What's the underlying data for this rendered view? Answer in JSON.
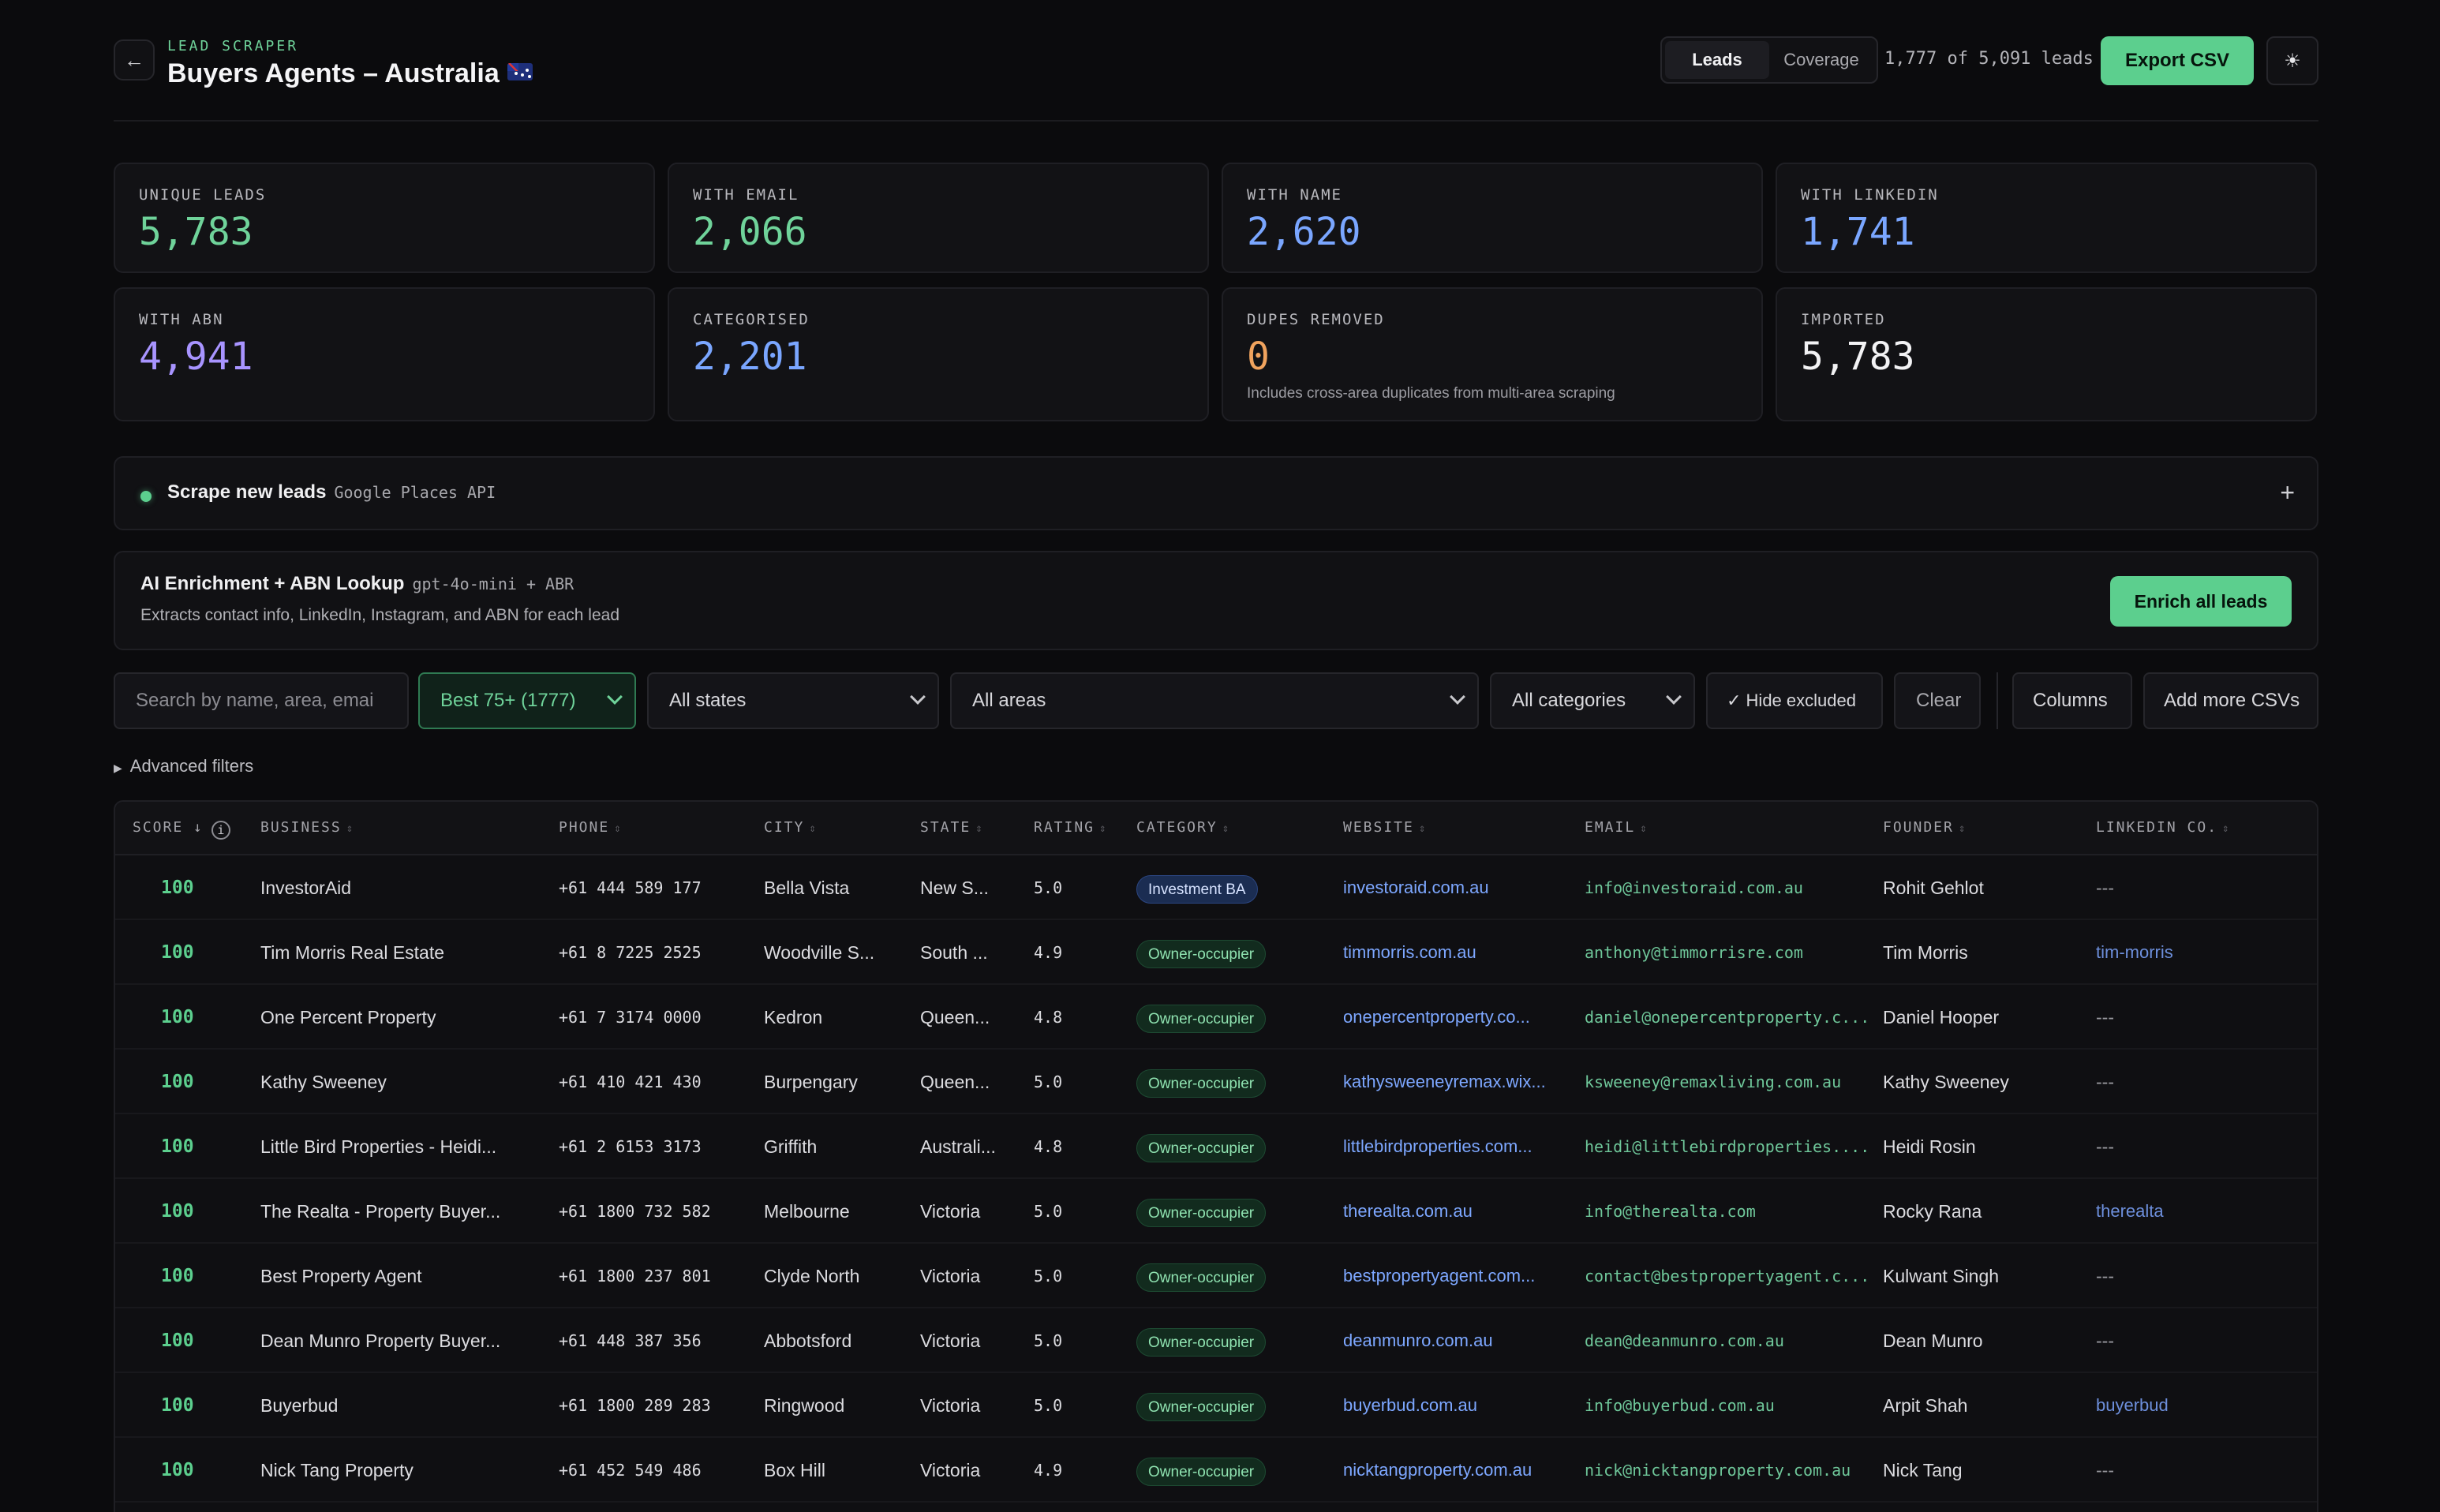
{
  "header": {
    "eyebrow": "LEAD SCRAPER",
    "title": "Buyers Agents – Australia",
    "tabs": [
      {
        "label": "Leads",
        "active": true
      },
      {
        "label": "Coverage",
        "active": false
      }
    ],
    "lead_count": "1,777 of 5,091 leads",
    "export_label": "Export CSV",
    "icons": {
      "back": "arrow-left-icon",
      "theme": "sun-icon",
      "flag": "australia-flag-icon"
    }
  },
  "stats": [
    {
      "label": "UNIQUE LEADS",
      "value": "5,783",
      "color": "#6fd39a"
    },
    {
      "label": "WITH EMAIL",
      "value": "2,066",
      "color": "#6fd39a"
    },
    {
      "label": "WITH NAME",
      "value": "2,620",
      "color": "#7aa6ff"
    },
    {
      "label": "WITH LINKEDIN",
      "value": "1,741",
      "color": "#7aa6ff"
    },
    {
      "label": "WITH ABN",
      "value": "4,941",
      "color": "#a894ff"
    },
    {
      "label": "CATEGORISED",
      "value": "2,201",
      "color": "#7aa6ff"
    },
    {
      "label": "DUPES REMOVED",
      "value": "0",
      "color": "#f0a35e",
      "note": "Includes cross-area duplicates from multi-area scraping"
    },
    {
      "label": "IMPORTED",
      "value": "5,783",
      "color": "#f2f2f4"
    }
  ],
  "scrape": {
    "title": "Scrape new leads",
    "subtitle": "Google Places API",
    "expand_icon": "plus-icon",
    "status_color": "#5ccf8e"
  },
  "enrich": {
    "title": "AI Enrichment + ABN Lookup",
    "model": "gpt-4o-mini + ABR",
    "description": "Extracts contact info, LinkedIn, Instagram, and ABN for each lead",
    "button": "Enrich all leads"
  },
  "filters": {
    "search_placeholder": "Search by name, area, emai",
    "score_filter": "Best 75+ (1777)",
    "state": "All states",
    "area": "All areas",
    "category": "All categories",
    "hide_excluded": "✓ Hide excluded",
    "clear": "Clear",
    "columns": "Columns",
    "add_csv": "Add more CSVs",
    "advanced": "Advanced filters"
  },
  "table": {
    "headers": {
      "score": "SCORE ↓",
      "business": "BUSINESS",
      "phone": "PHONE",
      "city": "CITY",
      "state": "STATE",
      "rating": "RATING",
      "category": "CATEGORY",
      "website": "WEBSITE",
      "email": "EMAIL",
      "founder": "FOUNDER",
      "linkedin": "LINKEDIN CO."
    },
    "rows": [
      {
        "score": "100",
        "business": "InvestorAid",
        "phone": "+61 444 589 177",
        "city": "Bella Vista",
        "state": "New S...",
        "rating": "5.0",
        "category": "Investment BA",
        "website": "investoraid.com.au",
        "email": "info@investoraid.com.au",
        "founder": "Rohit Gehlot",
        "linkedin": "---"
      },
      {
        "score": "100",
        "business": "Tim Morris Real Estate",
        "phone": "+61 8 7225 2525",
        "city": "Woodville S...",
        "state": "South ...",
        "rating": "4.9",
        "category": "Owner-occupier",
        "website": "timmorris.com.au",
        "email": "anthony@timmorrisre.com",
        "founder": "Tim Morris",
        "linkedin": "tim-morris"
      },
      {
        "score": "100",
        "business": "One Percent Property",
        "phone": "+61 7 3174 0000",
        "city": "Kedron",
        "state": "Queen...",
        "rating": "4.8",
        "category": "Owner-occupier",
        "website": "onepercentproperty.co...",
        "email": "daniel@onepercentproperty.c...",
        "founder": "Daniel Hooper",
        "linkedin": "---"
      },
      {
        "score": "100",
        "business": "Kathy Sweeney",
        "phone": "+61 410 421 430",
        "city": "Burpengary",
        "state": "Queen...",
        "rating": "5.0",
        "category": "Owner-occupier",
        "website": "kathysweeneyremax.wix...",
        "email": "ksweeney@remaxliving.com.au",
        "founder": "Kathy Sweeney",
        "linkedin": "---"
      },
      {
        "score": "100",
        "business": "Little Bird Properties - Heidi...",
        "phone": "+61 2 6153 3173",
        "city": "Griffith",
        "state": "Australi...",
        "rating": "4.8",
        "category": "Owner-occupier",
        "website": "littlebirdproperties.com...",
        "email": "heidi@littlebirdproperties....",
        "founder": "Heidi Rosin",
        "linkedin": "---"
      },
      {
        "score": "100",
        "business": "The Realta - Property Buyer...",
        "phone": "+61 1800 732 582",
        "city": "Melbourne",
        "state": "Victoria",
        "rating": "5.0",
        "category": "Owner-occupier",
        "website": "therealta.com.au",
        "email": "info@therealta.com",
        "founder": "Rocky Rana",
        "linkedin": "therealta"
      },
      {
        "score": "100",
        "business": "Best Property Agent",
        "phone": "+61 1800 237 801",
        "city": "Clyde North",
        "state": "Victoria",
        "rating": "5.0",
        "category": "Owner-occupier",
        "website": "bestpropertyagent.com...",
        "email": "contact@bestpropertyagent.c...",
        "founder": "Kulwant Singh",
        "linkedin": "---"
      },
      {
        "score": "100",
        "business": "Dean Munro Property Buyer...",
        "phone": "+61 448 387 356",
        "city": "Abbotsford",
        "state": "Victoria",
        "rating": "5.0",
        "category": "Owner-occupier",
        "website": "deanmunro.com.au",
        "email": "dean@deanmunro.com.au",
        "founder": "Dean Munro",
        "linkedin": "---"
      },
      {
        "score": "100",
        "business": "Buyerbud",
        "phone": "+61 1800 289 283",
        "city": "Ringwood",
        "state": "Victoria",
        "rating": "5.0",
        "category": "Owner-occupier",
        "website": "buyerbud.com.au",
        "email": "info@buyerbud.com.au",
        "founder": "Arpit Shah",
        "linkedin": "buyerbud"
      },
      {
        "score": "100",
        "business": "Nick Tang Property",
        "phone": "+61 452 549 486",
        "city": "Box Hill",
        "state": "Victoria",
        "rating": "4.9",
        "category": "Owner-occupier",
        "website": "nicktangproperty.com.au",
        "email": "nick@nicktangproperty.com.au",
        "founder": "Nick Tang",
        "linkedin": "---"
      }
    ]
  }
}
